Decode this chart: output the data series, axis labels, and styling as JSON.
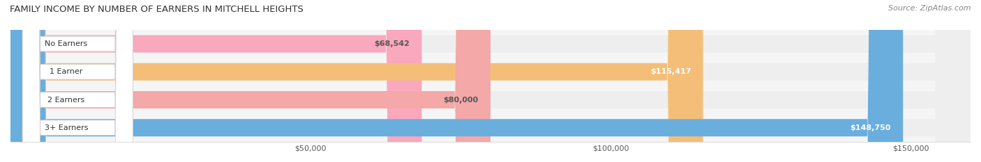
{
  "title": "FAMILY INCOME BY NUMBER OF EARNERS IN MITCHELL HEIGHTS",
  "source": "Source: ZipAtlas.com",
  "categories": [
    "No Earners",
    "1 Earner",
    "2 Earners",
    "3+ Earners"
  ],
  "values": [
    68542,
    115417,
    80000,
    148750
  ],
  "bar_colors": [
    "#F9A8BE",
    "#F5BE78",
    "#F4A8A8",
    "#6AAEDE"
  ],
  "bar_bg_color": "#EEEEEE",
  "value_labels": [
    "$68,542",
    "$115,417",
    "$80,000",
    "$148,750"
  ],
  "label_colors": [
    "#555555",
    "#ffffff",
    "#555555",
    "#ffffff"
  ],
  "xlim_min": 0,
  "xlim_max": 160000,
  "xtick_values": [
    50000,
    100000,
    150000
  ],
  "xtick_labels": [
    "$50,000",
    "$100,000",
    "$150,000"
  ],
  "fig_width": 14.06,
  "fig_height": 2.33,
  "bg_color": "#FFFFFF",
  "plot_bg_color": "#F5F5F5"
}
